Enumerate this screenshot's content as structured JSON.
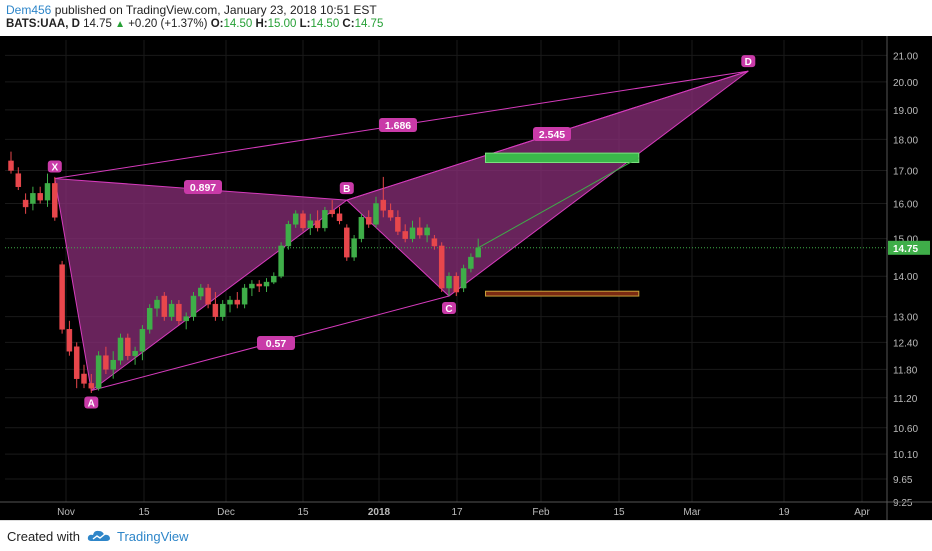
{
  "header": {
    "author": "Dem456",
    "published": "published on TradingView.com, January 23, 2018 10:51 EST",
    "symbol": "BATS:UAA, D",
    "last": "14.75",
    "change": "+0.20 (+1.37%)",
    "o_label": "O:",
    "o": "14.50",
    "h_label": "H:",
    "h": "15.00",
    "l_label": "L:",
    "l": "14.50",
    "c_label": "C:",
    "c": "14.75"
  },
  "footer": {
    "created": "Created with",
    "brand": "TradingView"
  },
  "colors": {
    "background": "#000000",
    "up": "#3fae49",
    "down": "#e8474c",
    "pattern_fill": "#8b2f7a",
    "pattern_line": "#d63bbd",
    "label_bg": "#c93aa8",
    "target_box": "#3ab84a",
    "stop_box": "#7a2a12",
    "price_line": "#3fae49"
  },
  "chart_data": {
    "type": "candlestick",
    "y_scale": "log",
    "ylim": [
      9.25,
      21.6
    ],
    "y_ticks": [
      "21.00",
      "20.00",
      "19.00",
      "18.00",
      "17.00",
      "16.00",
      "15.00",
      "14.00",
      "13.00",
      "12.40",
      "11.80",
      "11.20",
      "10.60",
      "10.10",
      "9.65",
      "9.25"
    ],
    "x_ticks": [
      "Nov",
      "15",
      "Dec",
      "15",
      "2018",
      "17",
      "Feb",
      "15",
      "Mar",
      "19",
      "Apr"
    ],
    "x_bold_ticks": [
      "2018"
    ],
    "last_price": "14.75",
    "candles": [
      {
        "o": 17.3,
        "h": 17.6,
        "l": 16.9,
        "c": 17.0
      },
      {
        "o": 16.9,
        "h": 17.1,
        "l": 16.4,
        "c": 16.5
      },
      {
        "o": 16.1,
        "h": 16.3,
        "l": 15.7,
        "c": 15.9
      },
      {
        "o": 16.0,
        "h": 16.5,
        "l": 15.8,
        "c": 16.3
      },
      {
        "o": 16.3,
        "h": 16.5,
        "l": 16.0,
        "c": 16.1
      },
      {
        "o": 16.1,
        "h": 16.9,
        "l": 15.9,
        "c": 16.6
      },
      {
        "o": 16.6,
        "h": 16.8,
        "l": 15.5,
        "c": 15.6
      },
      {
        "o": 14.3,
        "h": 14.4,
        "l": 12.6,
        "c": 12.7
      },
      {
        "o": 12.7,
        "h": 12.9,
        "l": 12.1,
        "c": 12.2
      },
      {
        "o": 12.3,
        "h": 12.4,
        "l": 11.4,
        "c": 11.6
      },
      {
        "o": 11.7,
        "h": 11.9,
        "l": 11.4,
        "c": 11.5
      },
      {
        "o": 11.5,
        "h": 11.7,
        "l": 11.3,
        "c": 11.4
      },
      {
        "o": 11.4,
        "h": 12.2,
        "l": 11.35,
        "c": 12.1
      },
      {
        "o": 12.1,
        "h": 12.3,
        "l": 11.7,
        "c": 11.8
      },
      {
        "o": 11.8,
        "h": 12.2,
        "l": 11.6,
        "c": 12.0
      },
      {
        "o": 12.0,
        "h": 12.6,
        "l": 11.9,
        "c": 12.5
      },
      {
        "o": 12.5,
        "h": 12.6,
        "l": 12.0,
        "c": 12.1
      },
      {
        "o": 12.1,
        "h": 12.3,
        "l": 11.9,
        "c": 12.2
      },
      {
        "o": 12.2,
        "h": 12.8,
        "l": 12.0,
        "c": 12.7
      },
      {
        "o": 12.7,
        "h": 13.3,
        "l": 12.6,
        "c": 13.2
      },
      {
        "o": 13.2,
        "h": 13.5,
        "l": 13.0,
        "c": 13.4
      },
      {
        "o": 13.5,
        "h": 13.6,
        "l": 12.9,
        "c": 13.0
      },
      {
        "o": 13.0,
        "h": 13.4,
        "l": 12.9,
        "c": 13.3
      },
      {
        "o": 13.3,
        "h": 13.4,
        "l": 12.8,
        "c": 12.9
      },
      {
        "o": 12.9,
        "h": 13.1,
        "l": 12.7,
        "c": 13.0
      },
      {
        "o": 13.0,
        "h": 13.6,
        "l": 12.9,
        "c": 13.5
      },
      {
        "o": 13.5,
        "h": 13.8,
        "l": 13.4,
        "c": 13.7
      },
      {
        "o": 13.7,
        "h": 13.8,
        "l": 13.2,
        "c": 13.3
      },
      {
        "o": 13.3,
        "h": 13.6,
        "l": 12.9,
        "c": 13.0
      },
      {
        "o": 13.0,
        "h": 13.4,
        "l": 12.9,
        "c": 13.3
      },
      {
        "o": 13.3,
        "h": 13.5,
        "l": 13.1,
        "c": 13.4
      },
      {
        "o": 13.4,
        "h": 13.6,
        "l": 13.2,
        "c": 13.3
      },
      {
        "o": 13.3,
        "h": 13.8,
        "l": 13.2,
        "c": 13.7
      },
      {
        "o": 13.7,
        "h": 13.9,
        "l": 13.5,
        "c": 13.8
      },
      {
        "o": 13.8,
        "h": 13.9,
        "l": 13.6,
        "c": 13.75
      },
      {
        "o": 13.75,
        "h": 13.95,
        "l": 13.6,
        "c": 13.85
      },
      {
        "o": 13.85,
        "h": 14.1,
        "l": 13.8,
        "c": 14.0
      },
      {
        "o": 14.0,
        "h": 14.9,
        "l": 13.95,
        "c": 14.8
      },
      {
        "o": 14.8,
        "h": 15.5,
        "l": 14.7,
        "c": 15.4
      },
      {
        "o": 15.4,
        "h": 15.8,
        "l": 15.3,
        "c": 15.7
      },
      {
        "o": 15.7,
        "h": 15.8,
        "l": 15.2,
        "c": 15.3
      },
      {
        "o": 15.3,
        "h": 15.7,
        "l": 15.1,
        "c": 15.5
      },
      {
        "o": 15.5,
        "h": 15.8,
        "l": 15.2,
        "c": 15.3
      },
      {
        "o": 15.3,
        "h": 15.9,
        "l": 15.2,
        "c": 15.8
      },
      {
        "o": 15.8,
        "h": 16.1,
        "l": 15.6,
        "c": 15.7
      },
      {
        "o": 15.7,
        "h": 15.9,
        "l": 15.4,
        "c": 15.5
      },
      {
        "o": 15.3,
        "h": 15.4,
        "l": 14.4,
        "c": 14.5
      },
      {
        "o": 14.5,
        "h": 15.1,
        "l": 14.4,
        "c": 15.0
      },
      {
        "o": 15.0,
        "h": 15.7,
        "l": 14.9,
        "c": 15.6
      },
      {
        "o": 15.6,
        "h": 15.8,
        "l": 15.3,
        "c": 15.4
      },
      {
        "o": 15.4,
        "h": 16.2,
        "l": 15.3,
        "c": 16.0
      },
      {
        "o": 16.1,
        "h": 16.8,
        "l": 15.6,
        "c": 15.8
      },
      {
        "o": 15.8,
        "h": 16.0,
        "l": 15.5,
        "c": 15.6
      },
      {
        "o": 15.6,
        "h": 15.8,
        "l": 15.1,
        "c": 15.2
      },
      {
        "o": 15.2,
        "h": 15.4,
        "l": 14.9,
        "c": 15.0
      },
      {
        "o": 15.0,
        "h": 15.5,
        "l": 14.9,
        "c": 15.3
      },
      {
        "o": 15.3,
        "h": 15.6,
        "l": 15.0,
        "c": 15.1
      },
      {
        "o": 15.1,
        "h": 15.4,
        "l": 14.9,
        "c": 15.3
      },
      {
        "o": 15.0,
        "h": 15.1,
        "l": 14.7,
        "c": 14.8
      },
      {
        "o": 14.8,
        "h": 14.9,
        "l": 13.6,
        "c": 13.7
      },
      {
        "o": 13.7,
        "h": 14.1,
        "l": 13.5,
        "c": 14.0
      },
      {
        "o": 14.0,
        "h": 14.1,
        "l": 13.5,
        "c": 13.6
      },
      {
        "o": 13.7,
        "h": 14.3,
        "l": 13.6,
        "c": 14.2
      },
      {
        "o": 14.2,
        "h": 14.6,
        "l": 14.1,
        "c": 14.5
      },
      {
        "o": 14.5,
        "h": 15.0,
        "l": 14.5,
        "c": 14.75
      }
    ],
    "pattern_points": [
      {
        "label": "X",
        "candle": 6,
        "price": 16.75
      },
      {
        "label": "A",
        "candle": 11,
        "price": 11.35
      },
      {
        "label": "B",
        "candle": 46,
        "price": 16.1
      },
      {
        "label": "C",
        "candle": 60,
        "price": 13.5
      },
      {
        "label": "D",
        "candle": 101,
        "price": 20.4
      }
    ],
    "ratios": [
      {
        "label": "0.897"
      },
      {
        "label": "1.686"
      },
      {
        "label": "0.57"
      },
      {
        "label": "2.545"
      }
    ],
    "target_zone": {
      "from_candle": 65,
      "to_candle": 86,
      "low": 17.25,
      "high": 17.55
    },
    "stop_zone": {
      "from_candle": 65,
      "to_candle": 86,
      "low": 13.5,
      "high": 13.62
    },
    "projection": {
      "from_candle": 64,
      "from_price": 14.75,
      "to_candle": 86,
      "to_price": 17.4
    }
  }
}
